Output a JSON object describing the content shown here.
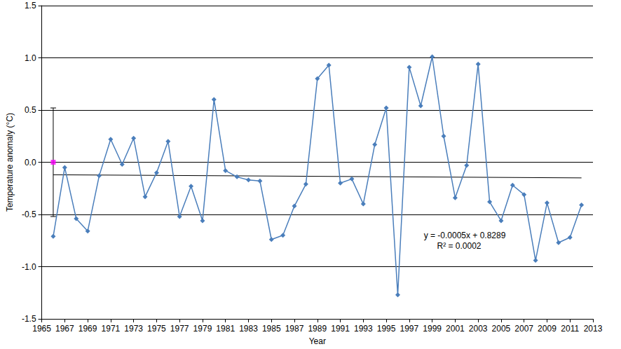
{
  "chart_data": {
    "type": "line",
    "xlabel": "Year",
    "ylabel": "Temperature anomaly (°C)",
    "x": [
      1966,
      1967,
      1968,
      1969,
      1970,
      1971,
      1972,
      1973,
      1974,
      1975,
      1976,
      1977,
      1978,
      1979,
      1980,
      1981,
      1982,
      1983,
      1984,
      1985,
      1986,
      1987,
      1988,
      1989,
      1990,
      1991,
      1992,
      1993,
      1994,
      1995,
      1996,
      1997,
      1998,
      1999,
      2000,
      2001,
      2002,
      2003,
      2004,
      2005,
      2006,
      2007,
      2008,
      2009,
      2010,
      2011,
      2012
    ],
    "series": [
      {
        "type": "line",
        "color": "#4a7ebb",
        "marker": "diamond",
        "line_style": "solid",
        "values": [
          -0.71,
          -0.05,
          -0.54,
          -0.66,
          -0.13,
          0.22,
          -0.02,
          0.23,
          -0.33,
          -0.1,
          0.2,
          -0.52,
          -0.23,
          -0.56,
          0.6,
          -0.08,
          -0.14,
          -0.17,
          -0.18,
          -0.74,
          -0.7,
          -0.42,
          -0.21,
          0.8,
          0.93,
          -0.2,
          -0.16,
          -0.4,
          0.17,
          0.52,
          -1.27,
          0.91,
          0.54,
          1.01,
          0.25,
          -0.34,
          -0.03,
          0.94,
          -0.38,
          -0.56,
          -0.22,
          -0.31,
          -0.94,
          -0.39,
          -0.77,
          -0.72,
          -0.41
        ]
      },
      {
        "type": "line",
        "color": "#000000",
        "marker": "none",
        "line_style": "solid",
        "x": [
          1966,
          2012
        ],
        "values": [
          -0.12,
          -0.15
        ]
      },
      {
        "type": "scatter",
        "color": "#ff00ff",
        "marker": "square",
        "x": [
          1966
        ],
        "values": [
          0.0
        ],
        "error": [
          0.52
        ]
      }
    ],
    "annotations": [
      "y = -0.0005x + 0.8289",
      "R² = 0.0002"
    ],
    "xlim": [
      1965,
      2013
    ],
    "xticks": [
      1965,
      1967,
      1969,
      1971,
      1973,
      1975,
      1977,
      1979,
      1981,
      1983,
      1985,
      1987,
      1989,
      1991,
      1993,
      1995,
      1997,
      1999,
      2001,
      2003,
      2005,
      2007,
      2009,
      2011,
      2013
    ],
    "ylim": [
      -1.5,
      1.5
    ],
    "yticks": [
      -1.5,
      {
        "value": -1,
        "label": "-1.0"
      },
      -0.5,
      {
        "value": 0,
        "label": "0.0"
      },
      0.5,
      {
        "value": 1,
        "label": "1.0"
      },
      1.5
    ],
    "grid": true
  }
}
